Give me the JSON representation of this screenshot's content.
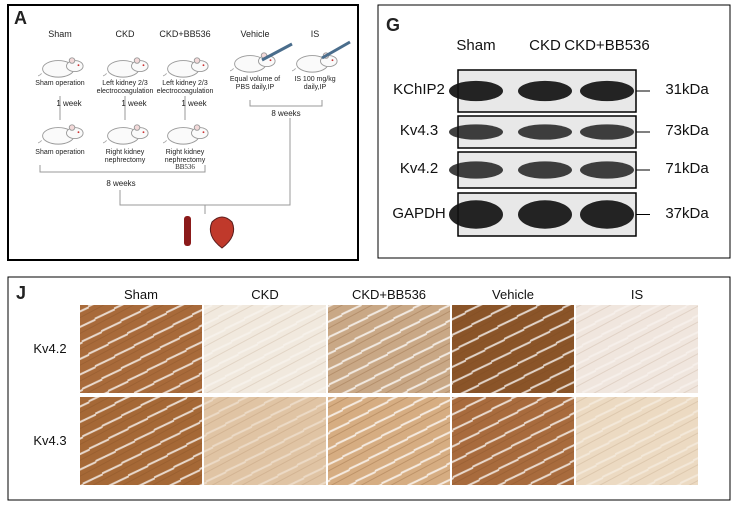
{
  "panel_a": {
    "label": "A",
    "groups": [
      {
        "name": "Sham",
        "step1": "Sham operation",
        "interval": "1 week",
        "step2": "Sham operation"
      },
      {
        "name": "CKD",
        "step1": "Left kidney 2/3 electrocoagulation",
        "interval": "1 week",
        "step2": "Right kidney nephrectomy"
      },
      {
        "name": "CKD+BB536",
        "step1": "Left kidney 2/3 electrocoagulation",
        "interval": "1 week",
        "step2": "Right kidney nephrectomy",
        "drug": "BB536"
      },
      {
        "name": "Vehicle",
        "step1": "Equal volume of PBS daily,IP"
      },
      {
        "name": "IS",
        "step1": "IS 100 mg/kg daily,IP"
      }
    ],
    "duration_left": "8 weeks",
    "duration_right": "8 weeks"
  },
  "panel_g": {
    "label": "G",
    "columns": [
      "Sham",
      "CKD",
      "CKD+BB536"
    ],
    "rows": [
      {
        "protein": "KChIP2",
        "size": "31kDa"
      },
      {
        "protein": "Kv4.3",
        "size": "73kDa"
      },
      {
        "protein": "Kv4.2",
        "size": "71kDa"
      },
      {
        "protein": "GAPDH",
        "size": "37kDa"
      }
    ]
  },
  "panel_j": {
    "label": "J",
    "columns": [
      "Sham",
      "CKD",
      "CKD+BB536",
      "Vehicle",
      "IS"
    ],
    "rows": [
      "Kv4.2",
      "Kv4.3"
    ]
  }
}
